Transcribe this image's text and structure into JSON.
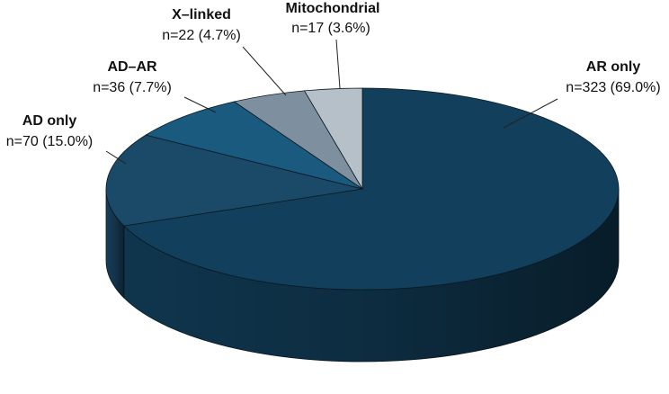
{
  "chart_data": {
    "type": "pie",
    "categories": [
      "AR only",
      "AD only",
      "AD–AR",
      "X–linked",
      "Mitochondrial"
    ],
    "values": [
      323,
      70,
      36,
      22,
      17
    ],
    "value_labels": [
      "n=323 (69.0%)",
      "n=70 (15.0%)",
      "n=36 (7.7%)",
      "n=22 (4.7%)",
      "n=17 (3.6%)"
    ],
    "colors": [
      "#123f5b",
      "#1b4968",
      "#1b5a7f",
      "#7e8f9f",
      "#b5c0c9"
    ]
  }
}
